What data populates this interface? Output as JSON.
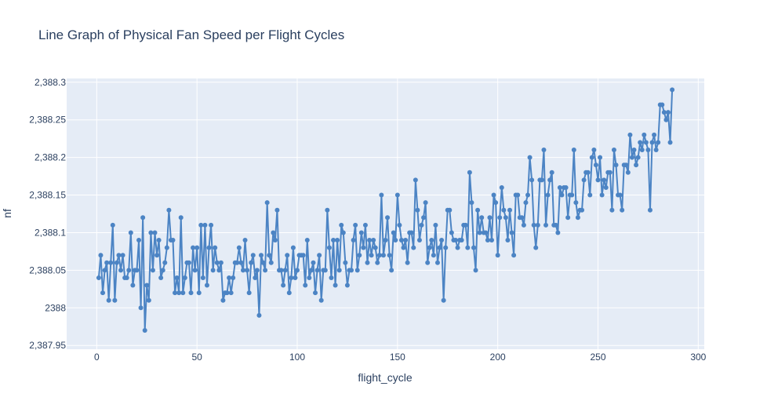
{
  "chart_data": {
    "type": "line",
    "title": "Line Graph of Physical Fan Speed per Flight Cycles",
    "xlabel": "flight_cycle",
    "ylabel": "nf",
    "xlim": [
      -15,
      303
    ],
    "ylim": [
      2387.945,
      2388.305
    ],
    "x_ticks": [
      0,
      50,
      100,
      150,
      200,
      250,
      300
    ],
    "x_tick_labels": [
      "0",
      "50",
      "100",
      "150",
      "200",
      "250",
      "300"
    ],
    "y_ticks": [
      2387.95,
      2388,
      2388.05,
      2388.1,
      2388.15,
      2388.2,
      2388.25,
      2388.3
    ],
    "y_tick_labels": [
      "2,387.95",
      "2388",
      "2,388.05",
      "2,388.1",
      "2,388.15",
      "2,388.2",
      "2,388.25",
      "2,388.3"
    ],
    "grid": true,
    "legend": "none",
    "colors": {
      "line": "#4c84c4",
      "plot_bg": "#e5ecf6"
    },
    "x_start": 1,
    "x_step": 1,
    "series": [
      {
        "values": [
          2388.04,
          2388.07,
          2388.02,
          2388.05,
          2388.06,
          2388.01,
          2388.06,
          2388.11,
          2388.01,
          2388.06,
          2388.07,
          2388.05,
          2388.07,
          2388.04,
          2388.04,
          2388.05,
          2388.1,
          2388.03,
          2388.05,
          2388.05,
          2388.09,
          2388.0,
          2388.12,
          2387.97,
          2388.03,
          2388.01,
          2388.1,
          2388.05,
          2388.1,
          2388.07,
          2388.09,
          2388.04,
          2388.05,
          2388.06,
          2388.08,
          2388.13,
          2388.09,
          2388.09,
          2388.02,
          2388.04,
          2388.02,
          2388.12,
          2388.02,
          2388.04,
          2388.06,
          2388.06,
          2388.02,
          2388.08,
          2388.05,
          2388.08,
          2388.02,
          2388.11,
          2388.04,
          2388.11,
          2388.03,
          2388.08,
          2388.11,
          2388.05,
          2388.08,
          2388.06,
          2388.05,
          2388.06,
          2388.01,
          2388.02,
          2388.02,
          2388.04,
          2388.02,
          2388.04,
          2388.06,
          2388.06,
          2388.08,
          2388.06,
          2388.05,
          2388.09,
          2388.05,
          2388.02,
          2388.06,
          2388.07,
          2388.04,
          2388.05,
          2387.99,
          2388.07,
          2388.06,
          2388.05,
          2388.14,
          2388.07,
          2388.06,
          2388.1,
          2388.09,
          2388.13,
          2388.05,
          2388.05,
          2388.03,
          2388.05,
          2388.07,
          2388.02,
          2388.04,
          2388.08,
          2388.04,
          2388.05,
          2388.07,
          2388.07,
          2388.07,
          2388.03,
          2388.09,
          2388.04,
          2388.05,
          2388.06,
          2388.02,
          2388.05,
          2388.07,
          2388.01,
          2388.05,
          2388.05,
          2388.13,
          2388.08,
          2388.04,
          2388.09,
          2388.03,
          2388.09,
          2388.05,
          2388.11,
          2388.1,
          2388.06,
          2388.03,
          2388.05,
          2388.05,
          2388.09,
          2388.11,
          2388.05,
          2388.07,
          2388.1,
          2388.08,
          2388.11,
          2388.06,
          2388.09,
          2388.07,
          2388.09,
          2388.08,
          2388.06,
          2388.07,
          2388.15,
          2388.07,
          2388.09,
          2388.12,
          2388.07,
          2388.05,
          2388.1,
          2388.09,
          2388.15,
          2388.11,
          2388.09,
          2388.08,
          2388.09,
          2388.06,
          2388.1,
          2388.1,
          2388.08,
          2388.17,
          2388.13,
          2388.09,
          2388.11,
          2388.12,
          2388.14,
          2388.06,
          2388.08,
          2388.09,
          2388.07,
          2388.11,
          2388.06,
          2388.08,
          2388.09,
          2388.01,
          2388.08,
          2388.13,
          2388.13,
          2388.1,
          2388.09,
          2388.09,
          2388.08,
          2388.09,
          2388.09,
          2388.11,
          2388.11,
          2388.08,
          2388.18,
          2388.14,
          2388.08,
          2388.05,
          2388.13,
          2388.1,
          2388.12,
          2388.1,
          2388.1,
          2388.09,
          2388.12,
          2388.09,
          2388.15,
          2388.14,
          2388.07,
          2388.12,
          2388.16,
          2388.13,
          2388.12,
          2388.09,
          2388.13,
          2388.1,
          2388.07,
          2388.15,
          2388.15,
          2388.12,
          2388.12,
          2388.11,
          2388.14,
          2388.15,
          2388.2,
          2388.17,
          2388.11,
          2388.08,
          2388.11,
          2388.17,
          2388.17,
          2388.21,
          2388.11,
          2388.15,
          2388.17,
          2388.18,
          2388.11,
          2388.11,
          2388.1,
          2388.16,
          2388.15,
          2388.16,
          2388.16,
          2388.12,
          2388.15,
          2388.15,
          2388.21,
          2388.14,
          2388.12,
          2388.13,
          2388.13,
          2388.17,
          2388.18,
          2388.18,
          2388.15,
          2388.2,
          2388.21,
          2388.19,
          2388.17,
          2388.2,
          2388.15,
          2388.17,
          2388.16,
          2388.18,
          2388.18,
          2388.13,
          2388.21,
          2388.19,
          2388.15,
          2388.15,
          2388.13,
          2388.19,
          2388.19,
          2388.18,
          2388.23,
          2388.2,
          2388.21,
          2388.19,
          2388.2,
          2388.22,
          2388.21,
          2388.23,
          2388.22,
          2388.21,
          2388.13,
          2388.22,
          2388.23,
          2388.21,
          2388.22,
          2388.27,
          2388.27,
          2388.26,
          2388.25,
          2388.26,
          2388.22,
          2388.29
        ]
      }
    ]
  }
}
